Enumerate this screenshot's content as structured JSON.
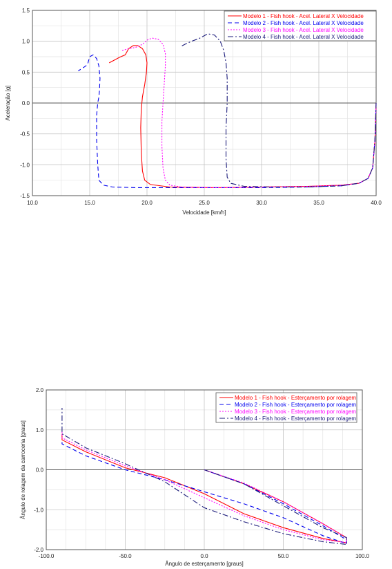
{
  "chart_data": [
    {
      "type": "line",
      "title": "",
      "xlabel": "Velocidade [km/h]",
      "ylabel": "Aceleração [g]",
      "xlim": [
        10.0,
        40.0
      ],
      "ylim": [
        -1.5,
        1.5
      ],
      "xticks": [
        "10.0",
        "15.0",
        "20.0",
        "25.0",
        "30.0",
        "35.0",
        "40.0"
      ],
      "yticks": [
        "1.5",
        "1.0",
        "0.5",
        "0.0",
        "-0.5",
        "-1.0",
        "-1.5"
      ],
      "grid": true,
      "legend_position": "top-right",
      "series": [
        {
          "name": "Modelo 1 - Fish hook - Acel. Lateral X Velocidade",
          "color": "#ff0000",
          "dash": "solid",
          "x": [
            40.0,
            39.9,
            39.7,
            39.3,
            38.5,
            37.0,
            34.0,
            30.0,
            26.0,
            22.0,
            20.3,
            19.8,
            19.6,
            19.5,
            19.45,
            19.5,
            19.6,
            19.8,
            19.95,
            20.0,
            19.9,
            19.6,
            19.2,
            18.8,
            18.4,
            18.1,
            17.6,
            17.2,
            16.7
          ],
          "y": [
            0.0,
            -0.6,
            -1.05,
            -1.22,
            -1.3,
            -1.33,
            -1.35,
            -1.36,
            -1.37,
            -1.36,
            -1.32,
            -1.25,
            -1.1,
            -0.8,
            -0.4,
            -0.1,
            0.1,
            0.3,
            0.5,
            0.65,
            0.78,
            0.88,
            0.93,
            0.93,
            0.88,
            0.78,
            0.74,
            0.7,
            0.65
          ]
        },
        {
          "name": "Modelo 2 - Fish hook - Acel. Lateral X Velocidade",
          "color": "#0000ee",
          "dash": "6 4",
          "x": [
            40.0,
            39.9,
            39.7,
            39.3,
            38.5,
            37.0,
            34.0,
            30.0,
            26.0,
            22.0,
            19.0,
            17.0,
            16.2,
            15.8,
            15.7,
            15.6,
            15.6,
            15.7,
            15.8,
            15.85,
            15.9,
            15.8,
            15.6,
            15.3,
            15.0,
            14.8,
            14.5,
            14.0
          ],
          "y": [
            0.0,
            -0.6,
            -1.05,
            -1.22,
            -1.3,
            -1.34,
            -1.36,
            -1.37,
            -1.37,
            -1.37,
            -1.37,
            -1.36,
            -1.33,
            -1.25,
            -1.0,
            -0.6,
            -0.2,
            0.0,
            0.1,
            0.2,
            0.4,
            0.6,
            0.72,
            0.78,
            0.75,
            0.62,
            0.58,
            0.52
          ]
        },
        {
          "name": "Modelo 3 - Fish hook - Acel. Lateral X Velocidade",
          "color": "#ff00ff",
          "dash": "2 2",
          "x": [
            40.0,
            39.9,
            39.7,
            39.3,
            38.5,
            37.0,
            34.0,
            30.0,
            26.0,
            23.0,
            22.0,
            21.6,
            21.4,
            21.3,
            21.3,
            21.4,
            21.5,
            21.6,
            21.6,
            21.4,
            21.0,
            20.5,
            20.1,
            19.6,
            19.0,
            18.4,
            17.8
          ],
          "y": [
            0.0,
            -0.6,
            -1.05,
            -1.22,
            -1.3,
            -1.33,
            -1.35,
            -1.36,
            -1.37,
            -1.36,
            -1.33,
            -1.25,
            -1.05,
            -0.7,
            -0.3,
            0.0,
            0.3,
            0.6,
            0.8,
            0.95,
            1.03,
            1.05,
            1.03,
            0.95,
            0.9,
            0.88,
            0.85
          ]
        },
        {
          "name": "Modelo 4 - Fish hook - Acel. Lateral X Velocidade",
          "color": "#1a1a7a",
          "dash": "8 3 2 3",
          "x": [
            40.0,
            39.9,
            39.7,
            39.3,
            38.5,
            37.0,
            34.0,
            31.0,
            28.5,
            27.3,
            27.0,
            26.9,
            26.9,
            27.0,
            27.0,
            26.9,
            26.7,
            26.4,
            25.9,
            25.3,
            24.6,
            23.9,
            23.3,
            23.0
          ],
          "y": [
            0.0,
            -0.6,
            -1.05,
            -1.22,
            -1.3,
            -1.34,
            -1.36,
            -1.36,
            -1.35,
            -1.3,
            -1.2,
            -0.9,
            -0.4,
            0.0,
            0.4,
            0.65,
            0.85,
            1.0,
            1.1,
            1.12,
            1.05,
            1.0,
            0.95,
            0.92
          ]
        }
      ]
    },
    {
      "type": "line",
      "title": "",
      "xlabel": "Ângulo de esterçamento [graus]",
      "ylabel": "Ângulo de rolagem da carroceria [graus]",
      "xlim": [
        -100.0,
        100.0
      ],
      "ylim": [
        -2.0,
        2.0
      ],
      "xticks": [
        "-100.0",
        "-50.0",
        "0.0",
        "50.0",
        "100.0"
      ],
      "yticks": [
        "2.0",
        "1.0",
        "0.0",
        "-1.0",
        "-2.0"
      ],
      "grid": true,
      "legend_position": "top-right",
      "series": [
        {
          "name": "Modelo 1 - Fish hook - Esterçamento por rolagem",
          "color": "#ff0000",
          "dash": "solid",
          "x": [
            0,
            25,
            50,
            75,
            90,
            90,
            75,
            50,
            25,
            0,
            -25,
            -50,
            -75,
            -90,
            -90
          ],
          "y": [
            0.0,
            -0.35,
            -0.8,
            -1.35,
            -1.7,
            -1.83,
            -1.72,
            -1.45,
            -1.1,
            -0.6,
            -0.2,
            0.05,
            0.45,
            0.75,
            0.9
          ]
        },
        {
          "name": "Modelo 2 - Fish hook - Esterçamento por rolagem",
          "color": "#0000ee",
          "dash": "6 4",
          "x": [
            0,
            25,
            50,
            75,
            90,
            90,
            75,
            50,
            25,
            0,
            -25,
            -50,
            -75,
            -90,
            -90
          ],
          "y": [
            0.0,
            -0.35,
            -0.85,
            -1.4,
            -1.75,
            -1.85,
            -1.65,
            -1.2,
            -0.85,
            -0.55,
            -0.25,
            0.0,
            0.35,
            0.65,
            0.75
          ]
        },
        {
          "name": "Modelo 3 - Fish hook - Esterçamento por rolagem",
          "color": "#ff00ff",
          "dash": "2 2",
          "x": [
            0,
            25,
            50,
            75,
            90,
            90,
            75,
            50,
            25,
            0,
            -25,
            -50,
            -75,
            -90,
            -90
          ],
          "y": [
            0.0,
            -0.33,
            -0.8,
            -1.35,
            -1.7,
            -1.82,
            -1.75,
            -1.5,
            -1.15,
            -0.7,
            -0.25,
            0.1,
            0.5,
            0.8,
            0.95
          ]
        },
        {
          "name": "Modelo 4 - Fish hook - Esterçamento por rolagem",
          "color": "#1a1a7a",
          "dash": "8 3 2 3",
          "x": [
            0,
            25,
            50,
            75,
            90,
            90,
            75,
            50,
            25,
            0,
            -25,
            -50,
            -75,
            -90,
            -90
          ],
          "y": [
            0.0,
            -0.35,
            -0.9,
            -1.45,
            -1.7,
            -1.87,
            -1.8,
            -1.6,
            -1.3,
            -0.95,
            -0.3,
            0.15,
            0.55,
            0.9,
            1.55
          ]
        }
      ]
    }
  ]
}
